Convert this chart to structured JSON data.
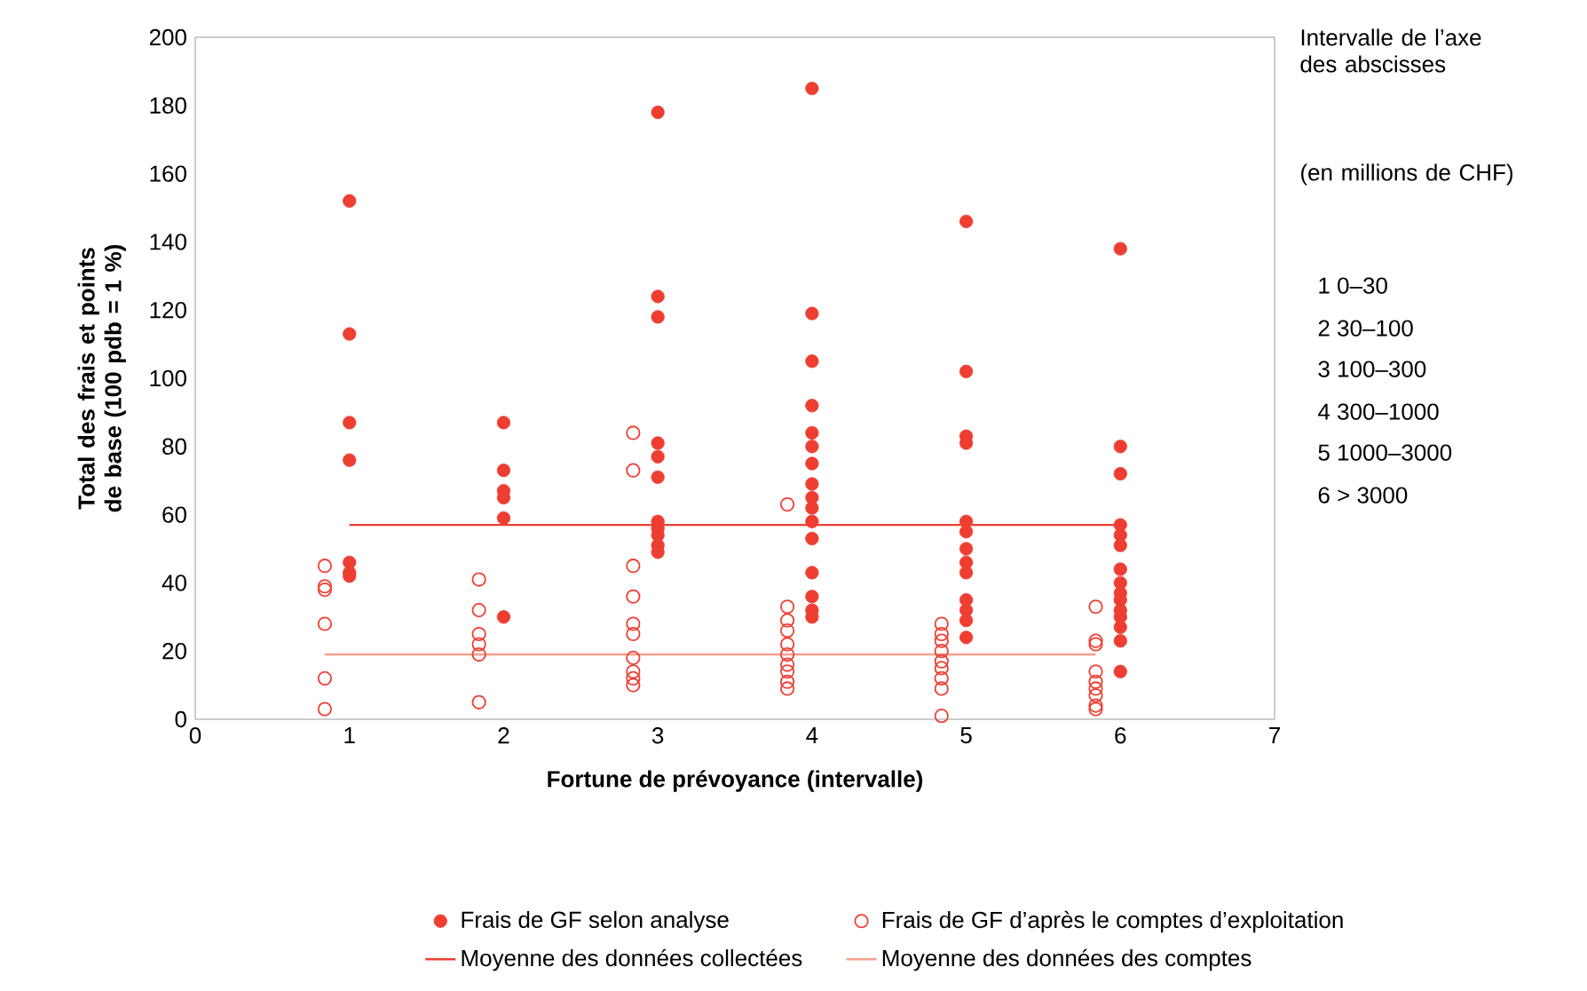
{
  "chart_data": {
    "type": "scatter",
    "xlabel": "Fortune de prévoyance (intervalle)",
    "ylabel": "Total des frais et points de base (100 pdb = 1 %)",
    "xlim": [
      0,
      7
    ],
    "xticks": [
      0,
      1,
      2,
      3,
      4,
      5,
      6,
      7
    ],
    "ylim": [
      0,
      200
    ],
    "yticks": [
      0,
      20,
      40,
      60,
      80,
      100,
      120,
      140,
      160,
      180,
      200
    ],
    "grid": false,
    "legend": "bottom",
    "series": [
      {
        "name": "Frais de GF selon analyse",
        "marker": "circle",
        "color": "#ee3e32",
        "x": [
          1,
          1,
          1,
          1,
          1,
          1,
          1,
          2,
          2,
          2,
          2,
          2,
          2,
          3,
          3,
          3,
          3,
          3,
          3,
          3,
          3,
          3,
          3,
          3,
          4,
          4,
          4,
          4,
          4,
          4,
          4,
          4,
          4,
          4,
          4,
          4,
          4,
          4,
          4,
          4,
          5,
          5,
          5,
          5,
          5,
          5,
          5,
          5,
          5,
          5,
          5,
          5,
          5,
          6,
          6,
          6,
          6,
          6,
          6,
          6,
          6,
          6,
          6,
          6,
          6,
          6,
          6,
          6
        ],
        "values": [
          152,
          113,
          87,
          76,
          46,
          43,
          42,
          87,
          73,
          67,
          65,
          59,
          30,
          178,
          124,
          118,
          81,
          77,
          71,
          58,
          56,
          54,
          51,
          49,
          185,
          119,
          105,
          92,
          84,
          80,
          75,
          69,
          65,
          62,
          58,
          53,
          43,
          36,
          32,
          30,
          146,
          102,
          83,
          81,
          58,
          55,
          50,
          46,
          43,
          35,
          32,
          29,
          24,
          138,
          80,
          72,
          57,
          54,
          51,
          44,
          40,
          37,
          35,
          32,
          30,
          27,
          23,
          14
        ]
      },
      {
        "name": "Frais de GF d’après le comptes d’exploitation",
        "type": "scatter",
        "marker": "open circle",
        "color": "#ee3e32",
        "x": [
          0.84,
          0.84,
          0.84,
          0.84,
          0.84,
          0.84,
          1.84,
          1.84,
          1.84,
          1.84,
          1.84,
          1.84,
          2.84,
          2.84,
          2.84,
          2.84,
          2.84,
          2.84,
          2.84,
          2.84,
          2.84,
          2.84,
          3.84,
          3.84,
          3.84,
          3.84,
          3.84,
          3.84,
          3.84,
          3.84,
          3.84,
          3.84,
          4.84,
          4.84,
          4.84,
          4.84,
          4.84,
          4.84,
          4.84,
          4.84,
          4.84,
          5.84,
          5.84,
          5.84,
          5.84,
          5.84,
          5.84,
          5.84,
          5.84,
          5.84
        ],
        "values": [
          45,
          39,
          38,
          28,
          12,
          3,
          41,
          32,
          25,
          22,
          19,
          5,
          84,
          73,
          45,
          36,
          28,
          25,
          18,
          14,
          12,
          10,
          63,
          33,
          29,
          26,
          22,
          19,
          16,
          14,
          11,
          9,
          28,
          25,
          23,
          20,
          17,
          15,
          12,
          9,
          1,
          33,
          23,
          22,
          14,
          11,
          9,
          7,
          4,
          3
        ]
      },
      {
        "name": "Moyenne des données collectées",
        "type": "line",
        "marker": "none",
        "color": "#ee3e32",
        "x": [
          1,
          6
        ],
        "values": [
          57,
          57
        ]
      },
      {
        "name": "Moyenne des données des comptes",
        "type": "line",
        "marker": "none",
        "color": "#f5a08c",
        "x": [
          0.84,
          5.84
        ],
        "values": [
          19,
          19
        ]
      }
    ],
    "annotations": [
      "Intervalle de l’axe des abscisses",
      "(en millions de CHF)",
      "1 0–30",
      "2 30–100",
      "3 100–300",
      "4 300–1000",
      "5 1000–3000",
      "6 > 3000"
    ]
  }
}
